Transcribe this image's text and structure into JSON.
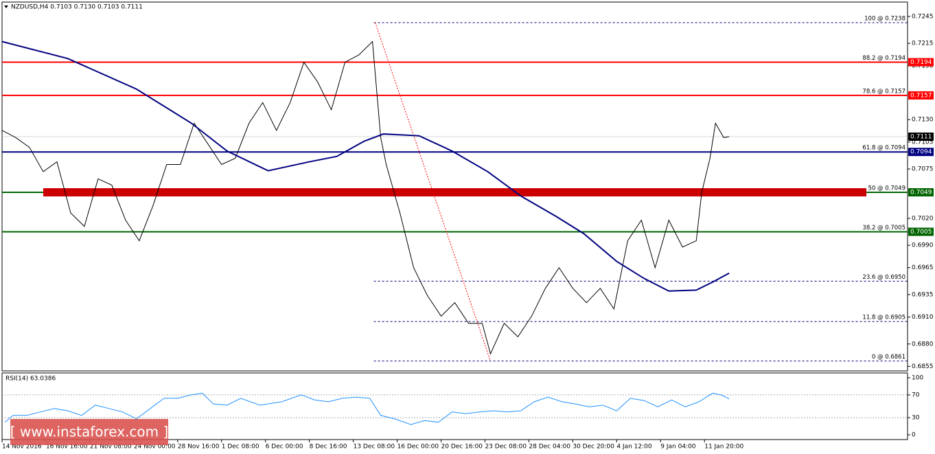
{
  "chart_data": [
    {
      "type": "line",
      "title": "NZDUSD,H4  0.7103 0.7130 0.7103 0.7111",
      "xlim": [
        0,
        330
      ],
      "ylim": [
        0.685,
        0.7261
      ],
      "xticks": [
        {
          "value": 0,
          "label": "14 Nov 2016"
        },
        {
          "value": 16,
          "label": "16 Nov 16:00"
        },
        {
          "value": 32,
          "label": "21 Nov 08:00"
        },
        {
          "value": 48,
          "label": "24 Nov 00:00"
        },
        {
          "value": 64,
          "label": "28 Nov 16:00"
        },
        {
          "value": 80,
          "label": "1 Dec 08:00"
        },
        {
          "value": 96,
          "label": "6 Dec 00:00"
        },
        {
          "value": 112,
          "label": "8 Dec 16:00"
        },
        {
          "value": 128,
          "label": "13 Dec 08:00"
        },
        {
          "value": 144,
          "label": "16 Dec 00:00"
        },
        {
          "value": 160,
          "label": "20 Dec 16:00"
        },
        {
          "value": 176,
          "label": "23 Dec 08:00"
        },
        {
          "value": 192,
          "label": "28 Dec 04:00"
        },
        {
          "value": 208,
          "label": "30 Dec 20:00"
        },
        {
          "value": 224,
          "label": "4 Jan 12:00"
        },
        {
          "value": 240,
          "label": "9 Jan 04:00"
        },
        {
          "value": 256,
          "label": "11 Jan 20:00"
        }
      ],
      "yticks": [
        0.7245,
        0.7215,
        {
          "value": 0.719,
          "label": "0.7190"
        },
        {
          "value": 0.713,
          "label": "0.7130"
        },
        0.7105,
        0.7075,
        {
          "value": 0.702,
          "label": "0.7020"
        },
        {
          "value": 0.699,
          "label": "0.6990"
        },
        0.6965,
        0.6935,
        {
          "value": 0.691,
          "label": "0.6910"
        },
        {
          "value": 0.688,
          "label": "0.6880"
        },
        0.6855
      ],
      "series": [
        {
          "color": "#000000",
          "x": [
            0,
            5,
            10,
            15,
            20,
            25,
            30,
            35,
            40,
            45,
            50,
            55,
            60,
            65,
            70,
            75,
            80,
            85,
            90,
            95,
            100,
            105,
            110,
            115,
            120,
            125,
            130,
            135,
            138,
            140,
            145,
            150,
            155,
            160,
            165,
            170,
            175,
            178,
            183,
            188,
            193,
            198,
            203,
            208,
            213,
            218,
            223,
            228,
            233,
            238,
            243,
            248,
            253,
            255,
            258,
            260,
            263,
            265
          ],
          "values": [
            0.7118,
            0.711,
            0.7099,
            0.7072,
            0.7083,
            0.7026,
            0.7011,
            0.7064,
            0.7057,
            0.7018,
            0.6995,
            0.7034,
            0.708,
            0.708,
            0.7126,
            0.7103,
            0.708,
            0.7087,
            0.7126,
            0.7149,
            0.7118,
            0.7149,
            0.7194,
            0.7172,
            0.7141,
            0.7194,
            0.7202,
            0.7217,
            0.711,
            0.708,
            0.7026,
            0.6965,
            0.6934,
            0.6911,
            0.6926,
            0.6903,
            0.6903,
            0.6869,
            0.6903,
            0.6888,
            0.6911,
            0.6942,
            0.6965,
            0.6942,
            0.6926,
            0.6942,
            0.6919,
            0.6995,
            0.7018,
            0.6965,
            0.7018,
            0.6988,
            0.6995,
            0.7049,
            0.7087,
            0.7126,
            0.711,
            0.7111
          ]
        },
        {
          "color": "#000080",
          "x": [
            0,
            24,
            49,
            69,
            82,
            97,
            112,
            122,
            132,
            139,
            152,
            164,
            177,
            189,
            202,
            212,
            224,
            234,
            243,
            253,
            259,
            265
          ],
          "values": [
            0.7217,
            0.7198,
            0.7164,
            0.7126,
            0.7095,
            0.7073,
            0.7083,
            0.7089,
            0.7106,
            0.7114,
            0.7112,
            0.7095,
            0.7072,
            0.7045,
            0.7022,
            0.7003,
            0.6972,
            0.6953,
            0.6939,
            0.694,
            0.6949,
            0.6959
          ]
        }
      ],
      "levels": [
        {
          "value": 0.7194,
          "color": "#ff0000"
        },
        {
          "value": 0.7157,
          "color": "#ff0000"
        },
        {
          "value": 0.7094,
          "color": "#000080"
        },
        {
          "value": 0.7049,
          "color": "#006400"
        },
        {
          "value": 0.7005,
          "color": "#006400"
        }
      ],
      "band": {
        "value": 0.7049,
        "color": "#cc0000",
        "x": [
          15,
          315
        ]
      },
      "last": 0.7111,
      "fib_start": 135.5,
      "fib": [
        {
          "label": "100 @ 0.7238",
          "value": 0.7238
        },
        {
          "label": "88.2 @ 0.7194",
          "value": 0.7194
        },
        {
          "label": "78.6 @ 0.7157",
          "value": 0.7157
        },
        {
          "label": "61.8 @ 0.7094",
          "value": 0.7094
        },
        {
          "label": "50 @ 0.7049",
          "value": 0.7049
        },
        {
          "label": "38.2 @ 0.7005",
          "value": 0.7005
        },
        {
          "label": "23.6 @ 0.6950",
          "value": 0.695
        },
        {
          "label": "11.8 @ 0.6905",
          "value": 0.6905
        },
        {
          "label": "0 @ 0.6861",
          "value": 0.6861
        }
      ],
      "trend": {
        "color": "#ff0000",
        "x": [
          136,
          178
        ],
        "values": [
          0.7238,
          0.6861
        ]
      }
    },
    {
      "type": "line",
      "title": "RSI(14) 63.0386",
      "xlim": [
        0,
        330
      ],
      "ylim": [
        -8.4,
        108.4
      ],
      "yticks": [
        100,
        70,
        30,
        0
      ],
      "levels": [
        70,
        30
      ],
      "series": [
        {
          "color": "#1e90ff",
          "x": [
            1,
            4,
            9,
            14,
            19,
            24,
            29,
            34,
            39,
            44,
            49,
            54,
            59,
            64,
            69,
            73,
            77,
            82,
            87,
            94,
            102,
            109,
            114,
            119,
            124,
            129,
            134,
            138,
            143,
            149,
            154,
            159,
            164,
            169,
            174,
            179,
            184,
            189,
            194,
            199,
            204,
            209,
            214,
            219,
            224,
            229,
            234,
            239,
            244,
            249,
            254,
            259,
            262,
            265
          ],
          "values": [
            22,
            34,
            34,
            40,
            46,
            42,
            34,
            52,
            46,
            40,
            28,
            46,
            64,
            64,
            70,
            73,
            54,
            52,
            64,
            52,
            58,
            70,
            61,
            58,
            64,
            66,
            64,
            34,
            28,
            18,
            25,
            22,
            40,
            37,
            40,
            42,
            40,
            42,
            58,
            66,
            58,
            54,
            49,
            52,
            42,
            64,
            60,
            49,
            61,
            49,
            58,
            73,
            70,
            63
          ]
        }
      ]
    }
  ],
  "watermark": "[ www.instaforex.com ]"
}
